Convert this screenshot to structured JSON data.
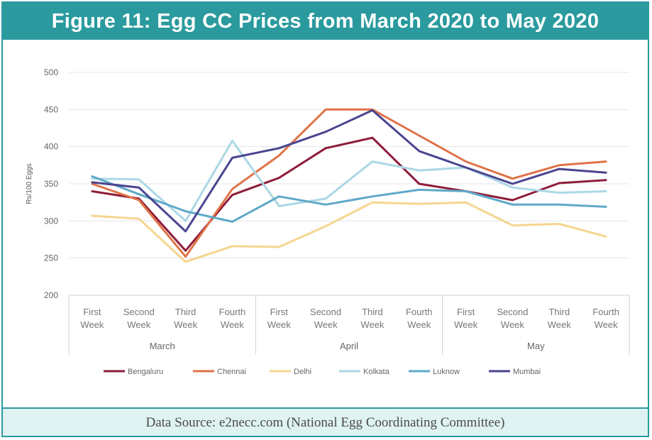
{
  "header": {
    "title": "Figure 11: Egg CC Prices from March 2020 to May 2020"
  },
  "footer": {
    "source": "Data Source: e2necc.com (National Egg Coordinating Committee)"
  },
  "chart_data": {
    "type": "line",
    "ylabel": "Rs/100 Eggs",
    "ylim": [
      200,
      500
    ],
    "yticks": [
      200,
      250,
      300,
      350,
      400,
      450,
      500
    ],
    "grid": true,
    "legend_position": "bottom",
    "categories": [
      [
        "First",
        "Week"
      ],
      [
        "Second",
        "Week"
      ],
      [
        "Third",
        "Week"
      ],
      [
        "Fourth",
        "Week"
      ],
      [
        "First",
        "Week"
      ],
      [
        "Second",
        "Week"
      ],
      [
        "Third",
        "Week"
      ],
      [
        "Fourth",
        "Week"
      ],
      [
        "First",
        "Week"
      ],
      [
        "Second",
        "Week"
      ],
      [
        "Third",
        "Week"
      ],
      [
        "Fourth",
        "Week"
      ]
    ],
    "groups": [
      {
        "label": "March",
        "count": 4
      },
      {
        "label": "April",
        "count": 4
      },
      {
        "label": "May",
        "count": 4
      }
    ],
    "series": [
      {
        "name": "Bengaluru",
        "color": "#8e1c3a",
        "values": [
          340,
          330,
          260,
          335,
          358,
          398,
          412,
          350,
          340,
          328,
          351,
          355
        ]
      },
      {
        "name": "Chennai",
        "color": "#e07348",
        "values": [
          350,
          328,
          252,
          343,
          388,
          450,
          450,
          415,
          380,
          357,
          375,
          380
        ]
      },
      {
        "name": "Delhi",
        "color": "#f6d590",
        "values": [
          307,
          303,
          245,
          266,
          265,
          293,
          325,
          323,
          325,
          294,
          296,
          279
        ]
      },
      {
        "name": "Kolkata",
        "color": "#abd8e6",
        "values": [
          357,
          356,
          300,
          408,
          320,
          330,
          380,
          368,
          372,
          345,
          338,
          340
        ]
      },
      {
        "name": "Luknow",
        "color": "#5ea9c8",
        "values": [
          360,
          336,
          313,
          299,
          333,
          322,
          333,
          342,
          340,
          322,
          322,
          319
        ]
      },
      {
        "name": "Mumbai",
        "color": "#4a4590",
        "values": [
          352,
          345,
          286,
          385,
          398,
          420,
          449,
          394,
          372,
          350,
          370,
          365
        ]
      }
    ]
  }
}
